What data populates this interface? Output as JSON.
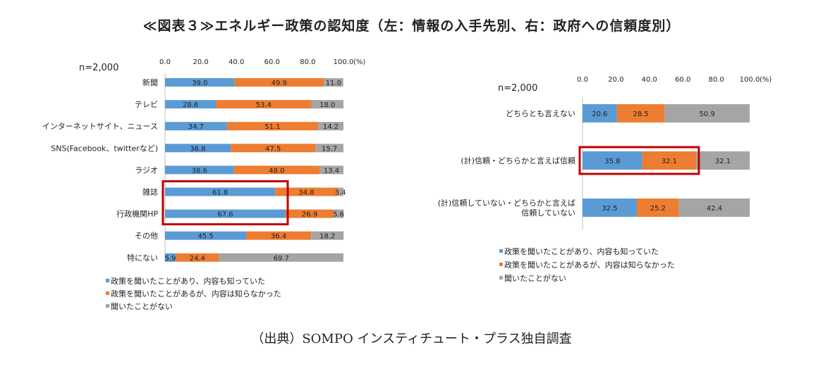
{
  "title": "≪図表３≫エネルギー政策の認知度（左：情報の入手先別、右：政府への信頼度別）",
  "source": "（出典）SOMPO インスティチュート・プラス独自調査",
  "legend": [
    "政策を聞いたことがあり、内容も知っていた",
    "政策を聞いたことがあるが、内容は知らなかった",
    "聞いたことがない"
  ],
  "colors": {
    "known": "#5b9bd5",
    "heard": "#ed7d31",
    "unknown": "#a5a5a5",
    "highlight": "#c00000"
  },
  "chart_data": [
    {
      "type": "bar",
      "orientation": "horizontal",
      "stacked": true,
      "sample_label": "n=2,000",
      "unit_label": "(%)",
      "xlim": [
        0,
        100
      ],
      "ticks": [
        "0.0",
        "20.0",
        "40.0",
        "60.0",
        "80.0",
        "100.0"
      ],
      "categories": [
        "新聞",
        "テレビ",
        "インターネットサイト、ニュース",
        "SNS(Facebook、twitterなど)",
        "ラジオ",
        "雑誌",
        "行政機関HP",
        "その他",
        "特にない"
      ],
      "series": [
        {
          "name": "政策を聞いたことがあり、内容も知っていた",
          "values": [
            39.0,
            28.6,
            34.7,
            36.8,
            38.6,
            61.8,
            67.6,
            45.5,
            5.9
          ],
          "labels": [
            "39.0",
            "28.6",
            "34.7",
            "36.8",
            "38.6",
            "61.8",
            "67.6",
            "45.5",
            "5.9"
          ]
        },
        {
          "name": "政策を聞いたことがあるが、内容は知らなかった",
          "values": [
            49.9,
            53.4,
            51.1,
            47.5,
            48.0,
            34.8,
            26.9,
            36.4,
            24.4
          ],
          "labels": [
            "49.9",
            "53.4",
            "51.1",
            "47.5",
            "48.0",
            "34.8",
            "26.9",
            "36.4",
            "24.4"
          ]
        },
        {
          "name": "聞いたことがない",
          "values": [
            11.0,
            18.0,
            14.2,
            15.7,
            13.4,
            3.4,
            5.6,
            18.2,
            69.7
          ],
          "labels": [
            "11.0",
            "18.0",
            "14.2",
            "15.7",
            "13.4",
            "3.4",
            "5.6",
            "18.2",
            "69.7"
          ]
        }
      ],
      "highlighted_categories": [
        "雑誌",
        "行政機関HP"
      ]
    },
    {
      "type": "bar",
      "orientation": "horizontal",
      "stacked": true,
      "sample_label": "n=2,000",
      "unit_label": "(%)",
      "xlim": [
        0,
        100
      ],
      "ticks": [
        "0.0",
        "20.0",
        "40.0",
        "60.0",
        "80.0",
        "100.0"
      ],
      "categories": [
        [
          "どちらとも言えない"
        ],
        [
          "(計)信頼・どちらかと言えば信頼"
        ],
        [
          "(計)信頼していない・どちらかと言えば",
          "信頼していない"
        ]
      ],
      "series": [
        {
          "name": "政策を聞いたことがあり、内容も知っていた",
          "values": [
            20.6,
            35.8,
            32.5
          ],
          "labels": [
            "20.6",
            "35.8",
            "32.5"
          ]
        },
        {
          "name": "政策を聞いたことがあるが、内容は知らなかった",
          "values": [
            28.5,
            32.1,
            25.2
          ],
          "labels": [
            "28.5",
            "32.1",
            "25.2"
          ]
        },
        {
          "name": "聞いたことがない",
          "values": [
            50.9,
            32.1,
            42.4
          ],
          "labels": [
            "50.9",
            "32.1",
            "42.4"
          ]
        }
      ],
      "highlighted_categories": [
        "(計)信頼・どちらかと言えば信頼"
      ],
      "highlighted_series_count": 2
    }
  ]
}
